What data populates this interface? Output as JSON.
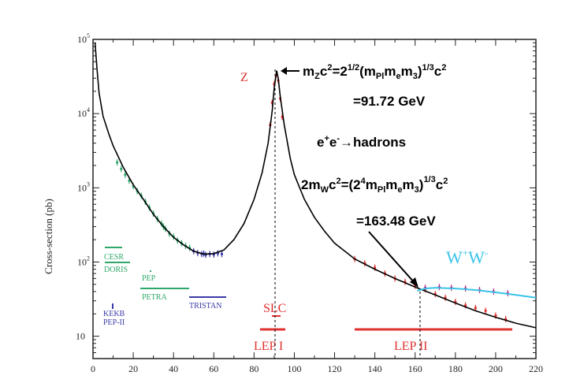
{
  "chart_data": {
    "type": "line",
    "title": "",
    "xlabel": "",
    "ylabel": "Cross-section (pb)",
    "xlim": [
      0,
      220
    ],
    "ylim": [
      5,
      100000
    ],
    "yscale": "log",
    "x_ticks": [
      "0",
      "20",
      "40",
      "60",
      "80",
      "100",
      "120",
      "140",
      "160",
      "180",
      "200",
      "220"
    ],
    "y_ticks": [
      {
        "base": "10",
        "exp": "5",
        "value": 100000
      },
      {
        "base": "10",
        "exp": "4",
        "value": 10000
      },
      {
        "base": "10",
        "exp": "3",
        "value": 1000
      },
      {
        "base": "10",
        "exp": "2",
        "value": 100
      },
      {
        "base": "10",
        "exp": "",
        "value": 10
      }
    ],
    "series": [
      {
        "color": "#000000",
        "points": [
          [
            1,
            90000
          ],
          [
            2,
            40000
          ],
          [
            3,
            19000
          ],
          [
            5,
            9200
          ],
          [
            8,
            5200
          ],
          [
            10,
            3700
          ],
          [
            15,
            1900
          ],
          [
            20,
            1100
          ],
          [
            25,
            700
          ],
          [
            30,
            440
          ],
          [
            35,
            300
          ],
          [
            40,
            215
          ],
          [
            45,
            170
          ],
          [
            50,
            140
          ],
          [
            55,
            128
          ],
          [
            60,
            130
          ],
          [
            65,
            145
          ],
          [
            70,
            200
          ],
          [
            75,
            330
          ],
          [
            80,
            700
          ],
          [
            84,
            1600
          ],
          [
            87,
            4000
          ],
          [
            89,
            11000
          ],
          [
            90,
            22000
          ],
          [
            91,
            35000
          ],
          [
            91.2,
            38000
          ],
          [
            92,
            30000
          ],
          [
            93,
            17000
          ],
          [
            95,
            7000
          ],
          [
            98,
            2500
          ],
          [
            100,
            1500
          ],
          [
            105,
            700
          ],
          [
            110,
            400
          ],
          [
            115,
            260
          ],
          [
            120,
            180
          ],
          [
            130,
            110
          ],
          [
            140,
            80
          ],
          [
            150,
            60
          ],
          [
            160,
            46
          ],
          [
            170,
            36
          ],
          [
            180,
            28
          ],
          [
            190,
            22
          ],
          [
            200,
            18
          ],
          [
            210,
            15
          ],
          [
            220,
            13
          ]
        ]
      },
      {
        "name": "W+W-",
        "color": "#3ac3e8",
        "points": [
          [
            161,
            41
          ],
          [
            165,
            44
          ],
          [
            170,
            45
          ],
          [
            180,
            44
          ],
          [
            190,
            42
          ],
          [
            200,
            39
          ],
          [
            210,
            36
          ],
          [
            220,
            33
          ]
        ]
      }
    ],
    "data_points": [
      {
        "color": "#2ea86a",
        "points": [
          [
            12,
            2200
          ],
          [
            14,
            1800
          ],
          [
            16,
            1500
          ],
          [
            18,
            1250
          ],
          [
            20,
            1050
          ],
          [
            22,
            900
          ],
          [
            24,
            780
          ],
          [
            26,
            650
          ],
          [
            28,
            540
          ],
          [
            30,
            450
          ],
          [
            32,
            380
          ],
          [
            34,
            330
          ],
          [
            35,
            300
          ],
          [
            36,
            280
          ],
          [
            38,
            240
          ],
          [
            40,
            220
          ],
          [
            42,
            195
          ],
          [
            44,
            180
          ],
          [
            46,
            165
          ],
          [
            48,
            155
          ]
        ]
      },
      {
        "color": "#3a3aa8",
        "points": [
          [
            50,
            140
          ],
          [
            52,
            132
          ],
          [
            54,
            128
          ],
          [
            55,
            130
          ],
          [
            56,
            125
          ],
          [
            58,
            128
          ],
          [
            60,
            126
          ],
          [
            62,
            131
          ],
          [
            64,
            128
          ]
        ]
      },
      {
        "color": "#e03030",
        "points": [
          [
            88,
            7000
          ],
          [
            89,
            14000
          ],
          [
            90,
            25000
          ],
          [
            91,
            33000
          ],
          [
            92,
            28000
          ],
          [
            93,
            16000
          ],
          [
            94,
            9000
          ],
          [
            130,
            110
          ],
          [
            135,
            96
          ],
          [
            140,
            84
          ],
          [
            145,
            70
          ],
          [
            150,
            60
          ],
          [
            155,
            54
          ],
          [
            160,
            48
          ],
          [
            165,
            43
          ],
          [
            170,
            37
          ],
          [
            175,
            33
          ],
          [
            180,
            29
          ],
          [
            185,
            26
          ],
          [
            190,
            24
          ],
          [
            195,
            22
          ],
          [
            200,
            19
          ],
          [
            205,
            17
          ]
        ]
      },
      {
        "color": "#b0308a",
        "points": [
          [
            165,
            45
          ],
          [
            172,
            46
          ],
          [
            178,
            45
          ],
          [
            185,
            44
          ],
          [
            192,
            42
          ],
          [
            199,
            40
          ],
          [
            206,
            38
          ]
        ]
      }
    ],
    "annotations": {
      "z_label": "Z",
      "z_formula": {
        "m": "m",
        "sub_z": "Z",
        "c2": "c",
        "two": "2",
        "eq": "=2",
        "half": "1/2",
        "paren_open": "(m",
        "sub_pl": "Pl",
        "m_e": "m",
        "sub_e": "e",
        "m_3": "m",
        "sub_3": "3",
        "paren_close": ")",
        "third": "1/3",
        "tail_c": "c",
        "tail_2": "2"
      },
      "z_value": "=91.72 GeV",
      "process": {
        "e1": "e",
        "plus": "+",
        "e2": "e",
        "minus": "-",
        "arrow_hadrons": "→hadrons"
      },
      "w_formula": {
        "prefix": "2m",
        "sub_w": "W",
        "c": "c",
        "two": "2",
        "eq_paren": "=(2",
        "four": "4",
        "m_pl": "m",
        "sub_pl": "Pl",
        "m_e": "m",
        "sub_e": "e",
        "m_3": "m",
        "sub_3": "3",
        "close": ")",
        "third": "1/3",
        "tail_c": "c",
        "tail_2": "2"
      },
      "w_value": "=163.48 GeV",
      "ww_label": {
        "w1": "W",
        "plus": "+",
        "w2": "W",
        "minus": "-"
      },
      "slc": "SLC",
      "lep1": "LEP I",
      "lep2": "LEP II",
      "cesr": "CESR",
      "doris": "DORIS",
      "pep": "PEP",
      "petra": "PETRA",
      "tristan": "TRISTAN",
      "kekb": "KEKB",
      "pepii": "PEP-II"
    },
    "colors": {
      "green": "#2ea86a",
      "blue": "#3a3aa8",
      "red": "#e03030",
      "cyan": "#3ac3e8",
      "black": "#000000"
    }
  }
}
